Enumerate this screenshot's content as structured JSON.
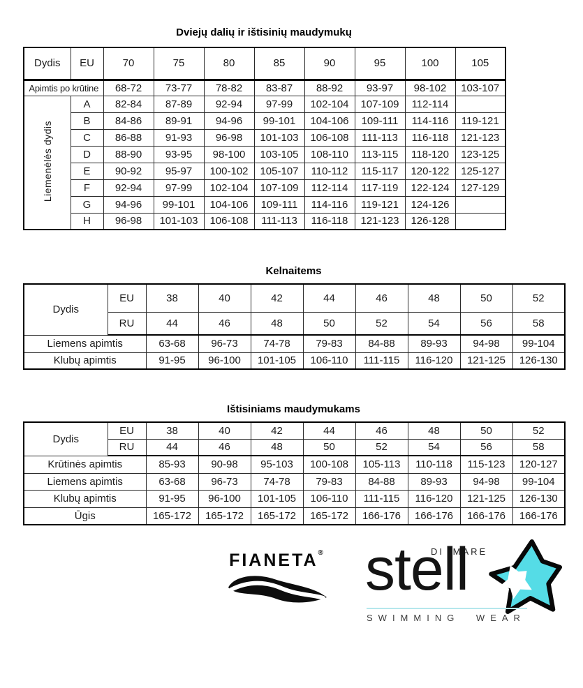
{
  "accent_color": "#55dce6",
  "table1": {
    "title": "Dviejų dalių ir ištisinių maudymukų",
    "corner_label": "Dydis",
    "eu_label": "EU",
    "sizes": [
      "70",
      "75",
      "80",
      "85",
      "90",
      "95",
      "100",
      "105"
    ],
    "underbust_label": "Apimtis po krūtine",
    "underbust": [
      "68-72",
      "73-77",
      "78-82",
      "83-87",
      "88-92",
      "93-97",
      "98-102",
      "103-107"
    ],
    "side_label": "Liemenėlės dydis",
    "cup_rows": [
      {
        "label": "A",
        "values": [
          "82-84",
          "87-89",
          "92-94",
          "97-99",
          "102-104",
          "107-109",
          "112-114",
          ""
        ]
      },
      {
        "label": "B",
        "values": [
          "84-86",
          "89-91",
          "94-96",
          "99-101",
          "104-106",
          "109-111",
          "114-116",
          "119-121"
        ]
      },
      {
        "label": "C",
        "values": [
          "86-88",
          "91-93",
          "96-98",
          "101-103",
          "106-108",
          "111-113",
          "116-118",
          "121-123"
        ]
      },
      {
        "label": "D",
        "values": [
          "88-90",
          "93-95",
          "98-100",
          "103-105",
          "108-110",
          "113-115",
          "118-120",
          "123-125"
        ]
      },
      {
        "label": "E",
        "values": [
          "90-92",
          "95-97",
          "100-102",
          "105-107",
          "110-112",
          "115-117",
          "120-122",
          "125-127"
        ]
      },
      {
        "label": "F",
        "values": [
          "92-94",
          "97-99",
          "102-104",
          "107-109",
          "112-114",
          "117-119",
          "122-124",
          "127-129"
        ]
      },
      {
        "label": "G",
        "values": [
          "94-96",
          "99-101",
          "104-106",
          "109-111",
          "114-116",
          "119-121",
          "124-126",
          ""
        ]
      },
      {
        "label": "H",
        "values": [
          "96-98",
          "101-103",
          "106-108",
          "111-113",
          "116-118",
          "121-123",
          "126-128",
          ""
        ]
      }
    ]
  },
  "table2": {
    "title": "Kelnaitems",
    "corner_label": "Dydis",
    "eu_label": "EU",
    "ru_label": "RU",
    "eu_sizes": [
      "38",
      "40",
      "42",
      "44",
      "46",
      "48",
      "50",
      "52"
    ],
    "ru_sizes": [
      "44",
      "46",
      "48",
      "50",
      "52",
      "54",
      "56",
      "58"
    ],
    "rows": [
      {
        "label": "Liemens apimtis",
        "values": [
          "63-68",
          "96-73",
          "74-78",
          "79-83",
          "84-88",
          "89-93",
          "94-98",
          "99-104"
        ]
      },
      {
        "label": "Klubų apimtis",
        "values": [
          "91-95",
          "96-100",
          "101-105",
          "106-110",
          "111-115",
          "116-120",
          "121-125",
          "126-130"
        ]
      }
    ]
  },
  "table3": {
    "title": "Ištisiniams maudymukams",
    "corner_label": "Dydis",
    "eu_label": "EU",
    "ru_label": "RU",
    "eu_sizes": [
      "38",
      "40",
      "42",
      "44",
      "46",
      "48",
      "50",
      "52"
    ],
    "ru_sizes": [
      "44",
      "46",
      "48",
      "50",
      "52",
      "54",
      "56",
      "58"
    ],
    "rows": [
      {
        "label": "Krūtinės apimtis",
        "values": [
          "85-93",
          "90-98",
          "95-103",
          "100-108",
          "105-113",
          "110-118",
          "115-123",
          "120-127"
        ]
      },
      {
        "label": "Liemens apimtis",
        "values": [
          "63-68",
          "96-73",
          "74-78",
          "79-83",
          "84-88",
          "89-93",
          "94-98",
          "99-104"
        ]
      },
      {
        "label": "Klubų apimtis",
        "values": [
          "91-95",
          "96-100",
          "101-105",
          "106-110",
          "111-115",
          "116-120",
          "121-125",
          "126-130"
        ]
      },
      {
        "label": "Ūgis",
        "values": [
          "165-172",
          "165-172",
          "165-172",
          "165-172",
          "166-176",
          "166-176",
          "166-176",
          "166-176"
        ]
      }
    ]
  },
  "logos": {
    "fianeta": {
      "text": "FIANETA",
      "registered": "®"
    },
    "stella": {
      "text": "stell",
      "di_mare": "DI MARE",
      "tagline": "SWIMMING WEAR"
    }
  }
}
